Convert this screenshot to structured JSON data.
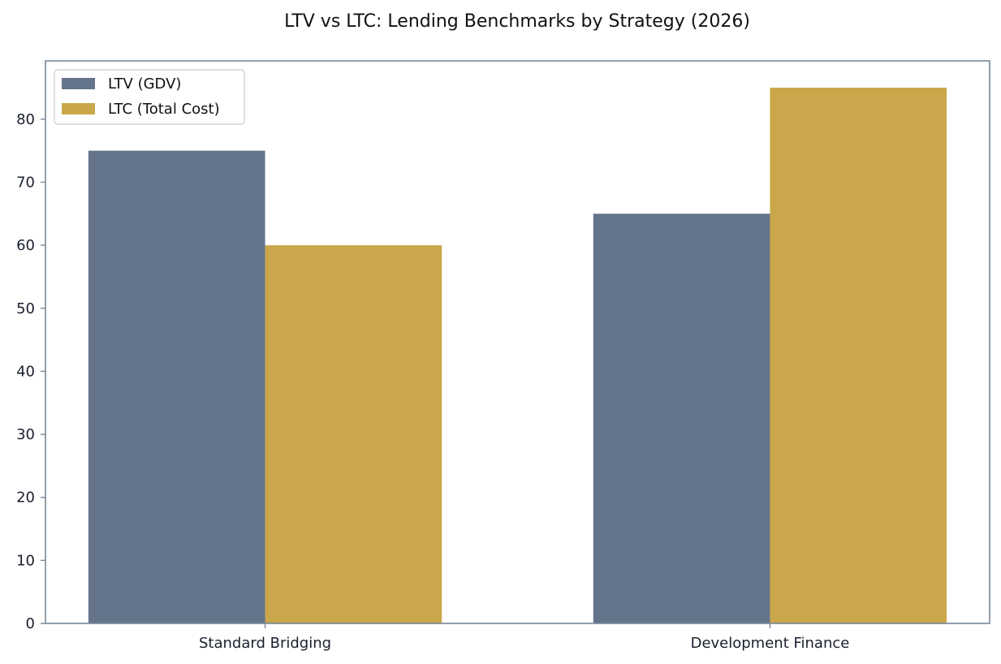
{
  "chart_data": {
    "type": "bar",
    "title": "LTV vs LTC: Lending Benchmarks by Strategy (2026)",
    "xlabel": "",
    "ylabel": "",
    "categories": [
      "Standard Bridging",
      "Development Finance"
    ],
    "series": [
      {
        "name": "LTV (GDV)",
        "values": [
          75,
          65
        ],
        "color": "#64748b"
      },
      {
        "name": "LTC (Total Cost)",
        "values": [
          60,
          85
        ],
        "color": "#c9a74a"
      }
    ],
    "ylim": [
      0,
      89.25
    ],
    "yticks": [
      "0",
      "10",
      "20",
      "30",
      "40",
      "50",
      "60",
      "70",
      "80"
    ],
    "grid": false,
    "legend_position": "top-left",
    "axis_color": "#778899",
    "text_color": "#1a1f2e"
  }
}
